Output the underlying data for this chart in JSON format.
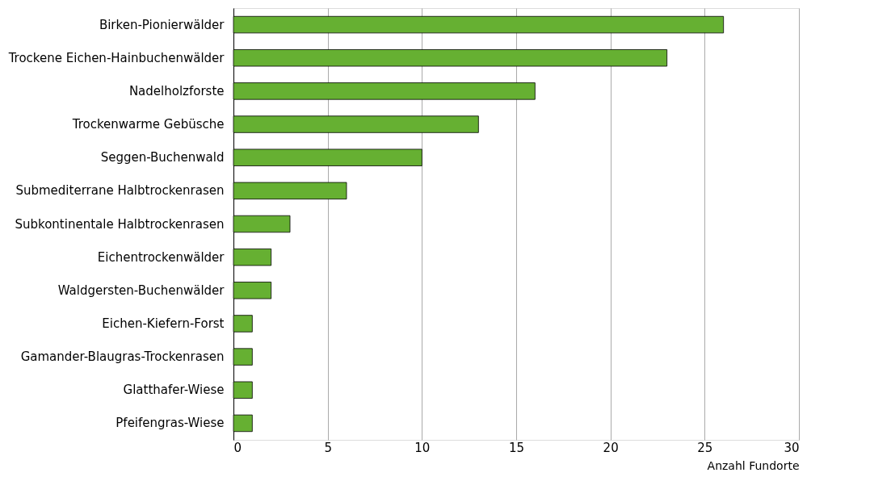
{
  "chart_data": {
    "type": "bar",
    "orientation": "horizontal",
    "xlabel": "Anzahl Fundorte",
    "categories": [
      "Birken-Pionierwälder",
      "Trockene Eichen-Hainbuchenwälder",
      "Nadelholzforste",
      "Trockenwarme Gebüsche",
      "Seggen-Buchenwald",
      "Submediterrane Halbtrockenrasen",
      "Subkontinentale Halbtrockenrasen",
      "Eichentrockenwälder",
      "Waldgersten-Buchenwälder",
      "Eichen-Kiefern-Forst",
      "Gamander-Blaugras-Trockenrasen",
      "Glatthafer-Wiese",
      "Pfeifengras-Wiese"
    ],
    "values": [
      26,
      23,
      16,
      13,
      10,
      6,
      3,
      2,
      2,
      1,
      1,
      1,
      1
    ],
    "color": "#66b032",
    "xlim": [
      0,
      30
    ],
    "xticks": [
      0,
      5,
      10,
      15,
      20,
      25,
      30
    ],
    "grid": "x"
  }
}
